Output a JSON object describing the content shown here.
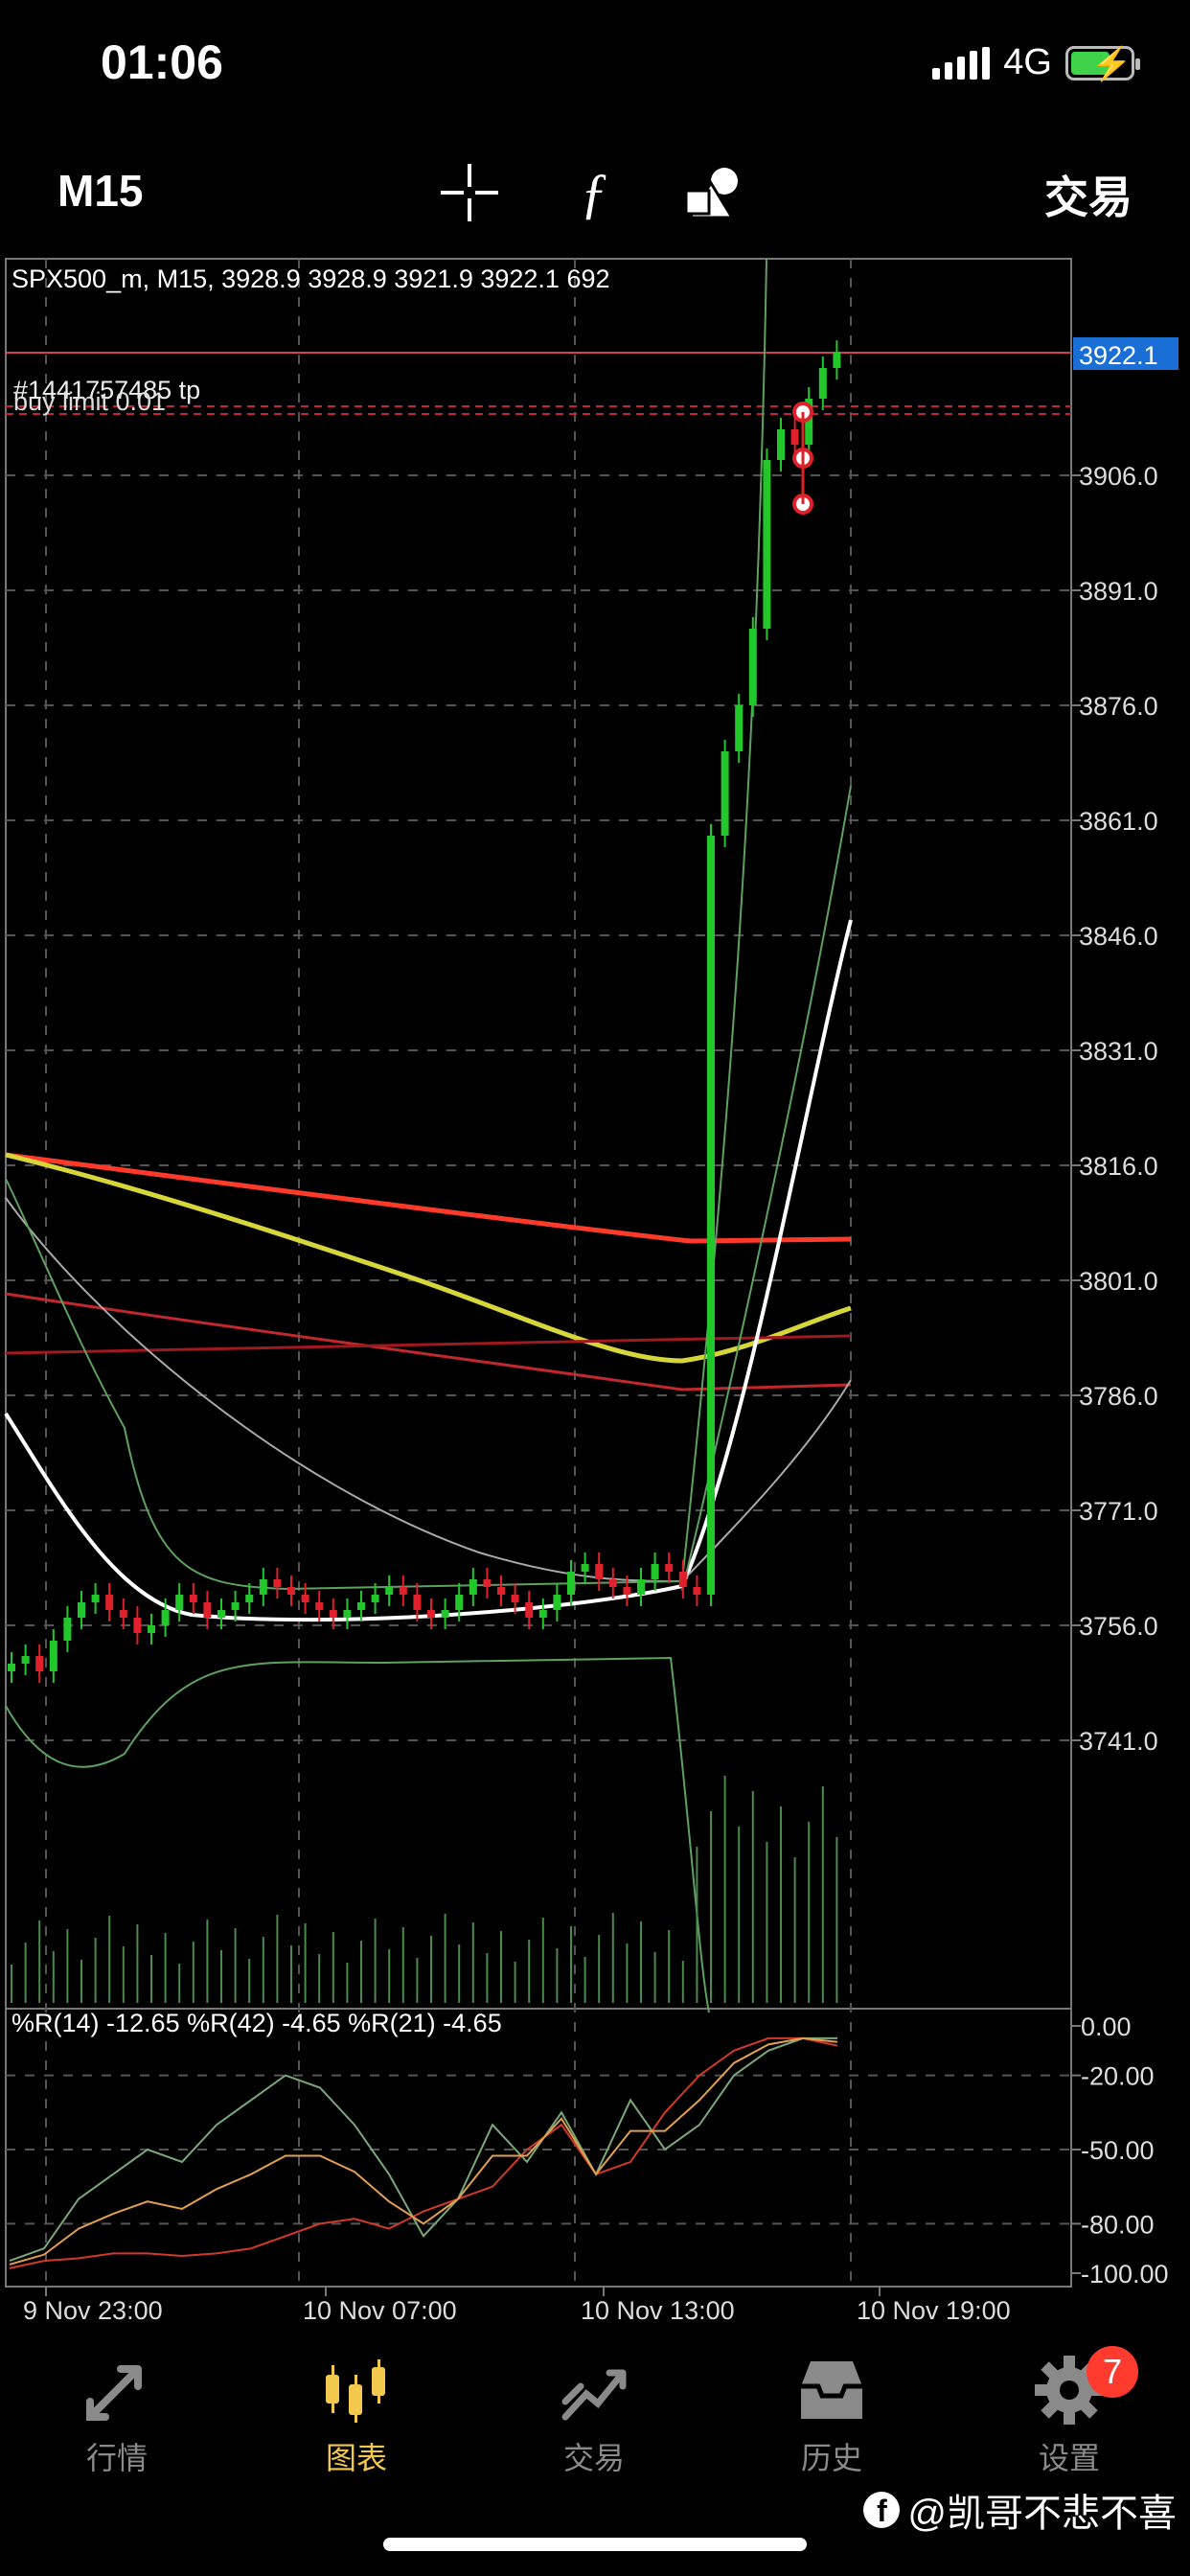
{
  "status_bar": {
    "time": "01:06",
    "network": "4G"
  },
  "toolbar": {
    "timeframe": "M15",
    "crosshair_icon": "crosshair-icon",
    "indicator_icon": "function-icon",
    "objects_icon": "shapes-icon",
    "trade_label": "交易"
  },
  "chart_header": {
    "symbol_line": "SPX500_m, M15, 3928.9 3928.9 3921.9 3922.1 692"
  },
  "order_labels": {
    "tp": "#1441757485 tp",
    "buy_limit": "buy limit 0.01"
  },
  "price_axis": {
    "current": "3922.1",
    "ticks": [
      "3906.0",
      "3891.0",
      "3876.0",
      "3861.0",
      "3846.0",
      "3831.0",
      "3816.0",
      "3801.0",
      "3786.0",
      "3771.0",
      "3756.0",
      "3741.0"
    ]
  },
  "indicator": {
    "label": "%R(14) -12.65 %R(42) -4.65 %R(21) -4.65",
    "ticks": [
      "0.00",
      "-20.00",
      "-50.00",
      "-80.00",
      "-100.00"
    ]
  },
  "time_axis": [
    "9 Nov 23:00",
    "10 Nov 07:00",
    "10 Nov 13:00",
    "10 Nov 19:00"
  ],
  "colors": {
    "bull": "#22c82a",
    "bear": "#e0202a",
    "price_tag": "#1a6fd6",
    "accent": "#f2c94c",
    "badge": "#ff3b30"
  },
  "chart_data": {
    "type": "candlestick",
    "symbol": "SPX500_m",
    "timeframe": "M15",
    "last_bar": {
      "open": 3928.9,
      "high": 3928.9,
      "low": 3921.9,
      "close": 3922.1,
      "volume": 692
    },
    "ylim": [
      3736,
      3932
    ],
    "series": [
      {
        "close": [
          3751,
          3752,
          3750,
          3754,
          3757,
          3759,
          3760,
          3758,
          3757,
          3755,
          3756,
          3758,
          3760,
          3759,
          3757,
          3758,
          3759,
          3760,
          3762,
          3761,
          3760,
          3759,
          3758,
          3757,
          3758,
          3759,
          3760,
          3761,
          3760,
          3758,
          3757,
          3758,
          3760,
          3762,
          3761,
          3760,
          3759,
          3757,
          3758,
          3760,
          3763,
          3764,
          3762,
          3761,
          3760,
          3762,
          3764,
          3763,
          3761,
          3760,
          3859,
          3870,
          3876,
          3886,
          3908,
          3912,
          3910,
          3916,
          3920,
          3922.1
        ]
      }
    ]
  },
  "tabs": [
    {
      "label": "行情",
      "icon": "arrows-icon"
    },
    {
      "label": "图表",
      "icon": "candles-icon"
    },
    {
      "label": "交易",
      "icon": "trend-icon"
    },
    {
      "label": "历史",
      "icon": "inbox-icon"
    },
    {
      "label": "设置",
      "icon": "gear-icon",
      "badge": "7"
    }
  ],
  "watermark": "@凯哥不悲不喜"
}
